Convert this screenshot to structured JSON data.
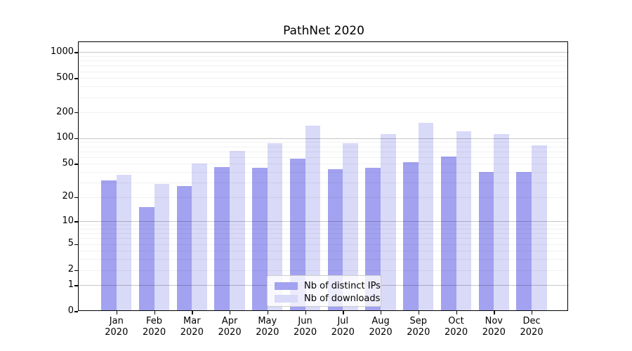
{
  "title": "PathNet 2020",
  "chart_data": {
    "type": "bar",
    "title": "PathNet 2020",
    "categories": [
      "Jan 2020",
      "Feb 2020",
      "Mar 2020",
      "Apr 2020",
      "May 2020",
      "Jun 2020",
      "Jul 2020",
      "Aug 2020",
      "Sep 2020",
      "Oct 2020",
      "Nov 2020",
      "Dec 2020"
    ],
    "series": [
      {
        "name": "Nb of distinct IPs",
        "color": "#a2a2f0",
        "values": [
          32,
          15,
          27,
          46,
          45,
          57,
          43,
          45,
          52,
          61,
          40,
          40
        ]
      },
      {
        "name": "Nb of downloads",
        "color": "#d9d9f8",
        "values": [
          37,
          29,
          50,
          71,
          87,
          140,
          87,
          112,
          150,
          121,
          112,
          83
        ]
      }
    ],
    "y_ticks": [
      0,
      1,
      2,
      5,
      10,
      20,
      50,
      100,
      200,
      500,
      1000
    ],
    "y_major_gridlines": [
      1,
      10,
      100,
      1000
    ],
    "y_minor_gridlines": [
      2,
      3,
      4,
      5,
      6,
      7,
      8,
      9,
      20,
      30,
      40,
      50,
      60,
      70,
      80,
      90,
      200,
      300,
      400,
      500,
      600,
      700,
      800,
      900
    ],
    "y_scale": "log1p",
    "ylim": [
      0,
      1300
    ],
    "xlabel": "",
    "ylabel": "",
    "grid": true,
    "legend_position": "lower center"
  }
}
